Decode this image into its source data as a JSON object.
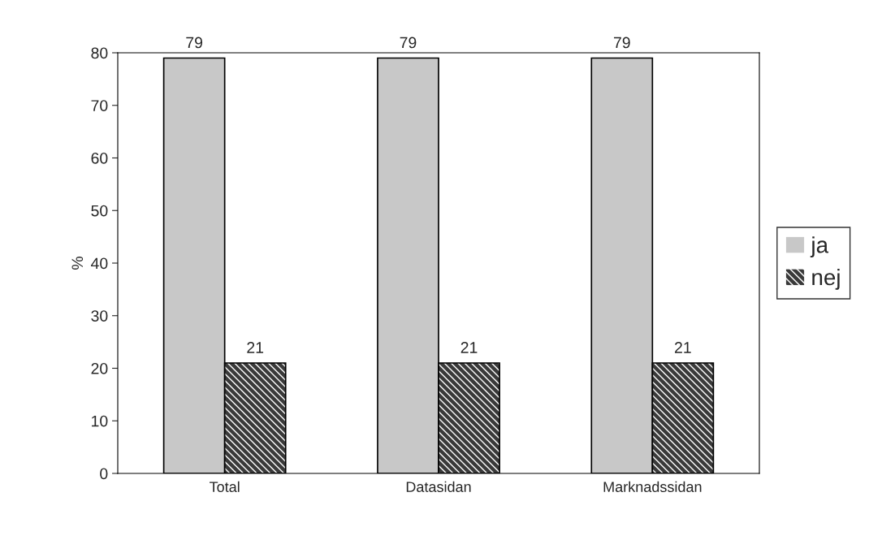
{
  "chart_data": {
    "type": "bar",
    "categories": [
      "Total",
      "Datasidan",
      "Marknadssidan"
    ],
    "series": [
      {
        "name": "ja",
        "color": "#c8c8c8",
        "values": [
          79,
          79,
          79
        ]
      },
      {
        "name": "nej",
        "color": "#3a3a3a",
        "values": [
          21,
          21,
          21
        ]
      }
    ],
    "ylabel": "%",
    "ylim": [
      0,
      80
    ],
    "yticks": [
      0,
      10,
      20,
      30,
      40,
      50,
      60,
      70,
      80
    ],
    "data_labels": true,
    "legend": "right",
    "grid": false
  }
}
